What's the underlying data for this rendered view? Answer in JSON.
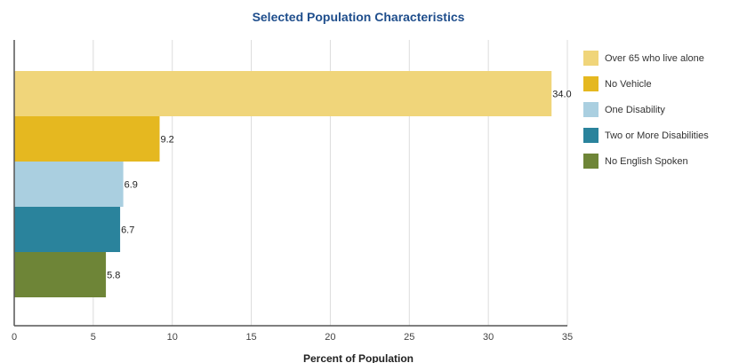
{
  "chart_data": {
    "type": "bar",
    "orientation": "horizontal",
    "title": "Selected Population Characteristics",
    "xlabel": "Percent of Population",
    "ylabel": "",
    "xlim": [
      0,
      35
    ],
    "xticks": [
      "0",
      "5",
      "10",
      "15",
      "20",
      "25",
      "30",
      "35"
    ],
    "grid": true,
    "legend_position": "right",
    "categories": [
      "Over 65 who live alone",
      "No Vehicle",
      "One Disability",
      "Two or More Disabilities",
      "No English Spoken"
    ],
    "values": [
      34.0,
      9.2,
      6.9,
      6.7,
      5.8
    ],
    "value_labels": [
      "34.0",
      "9.2",
      "6.9",
      "6.7",
      "5.8"
    ],
    "colors": [
      "#f0d57a",
      "#e5b820",
      "#aacfe0",
      "#2a839c",
      "#6e8537"
    ]
  }
}
